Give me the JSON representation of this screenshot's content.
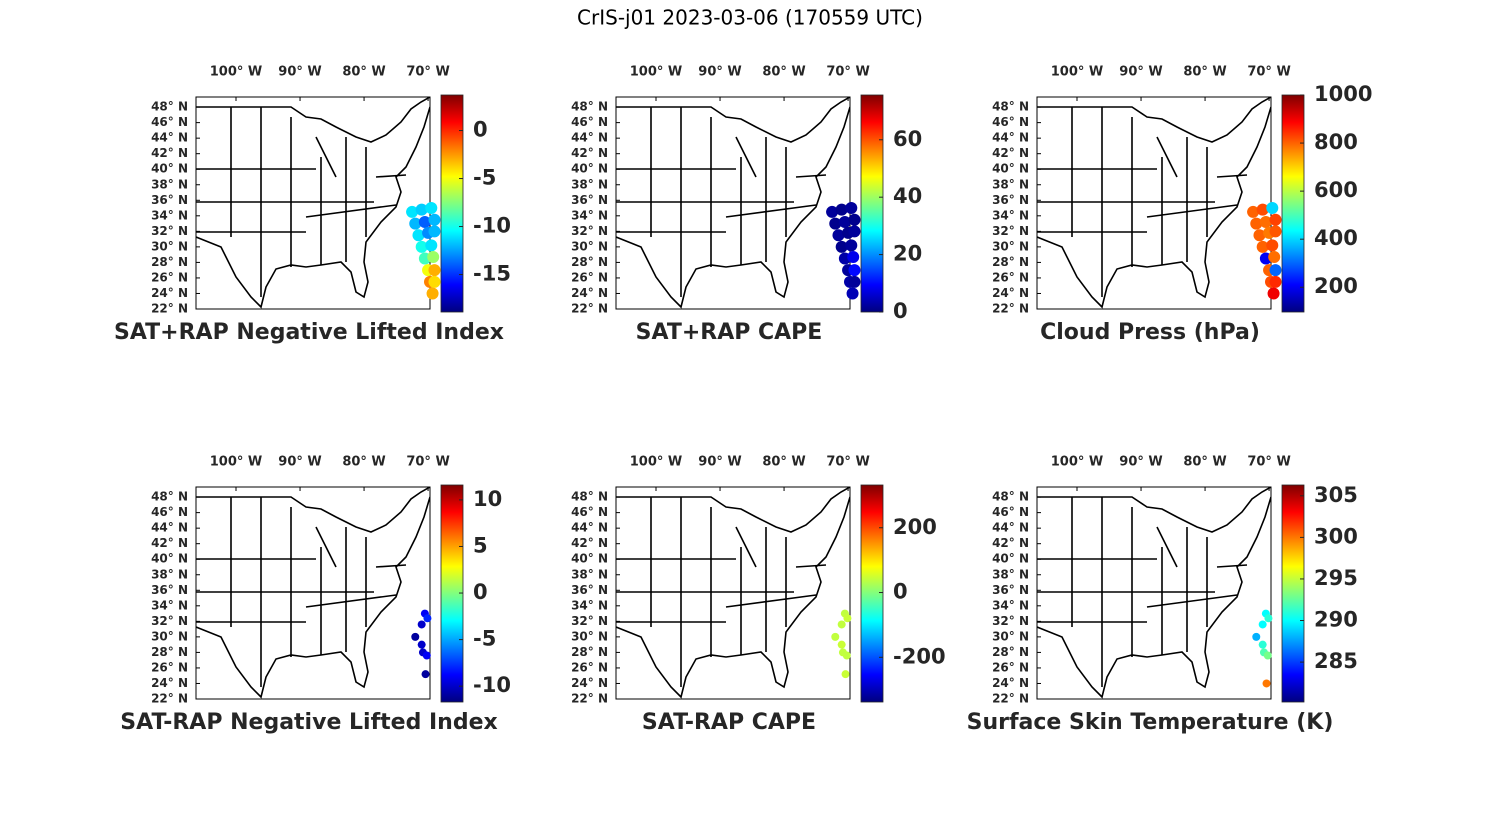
{
  "title": "CrIS-j01 2023-03-06 (170559 UTC)",
  "map": {
    "lon_range": [
      -106.25,
      -69.7
    ],
    "lat_range": [
      22,
      49.3
    ],
    "lon_ticks": [
      {
        "value": -100,
        "label": "100° W"
      },
      {
        "value": -90,
        "label": "90° W"
      },
      {
        "value": -80,
        "label": "80° W"
      },
      {
        "value": -70,
        "label": "70° W"
      }
    ],
    "lat_ticks": [
      {
        "value": 48,
        "label": "48° N"
      },
      {
        "value": 46,
        "label": "46° N"
      },
      {
        "value": 44,
        "label": "44° N"
      },
      {
        "value": 42,
        "label": "42° N"
      },
      {
        "value": 40,
        "label": "40° N"
      },
      {
        "value": 38,
        "label": "38° N"
      },
      {
        "value": 36,
        "label": "36° N"
      },
      {
        "value": 34,
        "label": "34° N"
      },
      {
        "value": 32,
        "label": "32° N"
      },
      {
        "value": 30,
        "label": "30° N"
      },
      {
        "value": 28,
        "label": "28° N"
      },
      {
        "value": 26,
        "label": "26° N"
      },
      {
        "value": 24,
        "label": "24° N"
      },
      {
        "value": 22,
        "label": "22° N"
      }
    ]
  },
  "panels": [
    {
      "title": "SAT+RAP Negative Lifted Index",
      "clim": [
        -18.9,
        3.7
      ],
      "cticks": [
        0,
        -5,
        -10,
        -15
      ],
      "points": [
        {
          "lon": -72.5,
          "lat": 34.5,
          "value": -11
        },
        {
          "lon": -71,
          "lat": 34.8,
          "value": -11.5
        },
        {
          "lon": -69.5,
          "lat": 35,
          "value": -11
        },
        {
          "lon": -72,
          "lat": 33,
          "value": -12
        },
        {
          "lon": -70.5,
          "lat": 33.2,
          "value": -14
        },
        {
          "lon": -69,
          "lat": 33.5,
          "value": -12
        },
        {
          "lon": -71.5,
          "lat": 31.5,
          "value": -11
        },
        {
          "lon": -70,
          "lat": 31.8,
          "value": -13
        },
        {
          "lon": -69,
          "lat": 32,
          "value": -12
        },
        {
          "lon": -71,
          "lat": 30,
          "value": -10
        },
        {
          "lon": -69.5,
          "lat": 30.2,
          "value": -11
        },
        {
          "lon": -70.5,
          "lat": 28.5,
          "value": -9
        },
        {
          "lon": -69.2,
          "lat": 28.7,
          "value": -7
        },
        {
          "lon": -70,
          "lat": 27,
          "value": -5
        },
        {
          "lon": -69,
          "lat": 27,
          "value": -3
        },
        {
          "lon": -69.7,
          "lat": 25.5,
          "value": -2
        },
        {
          "lon": -69,
          "lat": 25.5,
          "value": -4
        },
        {
          "lon": -69.3,
          "lat": 24,
          "value": -3
        }
      ]
    },
    {
      "title": "SAT+RAP CAPE",
      "clim": [
        0,
        75.6
      ],
      "cticks": [
        0,
        20,
        40,
        60
      ],
      "points": [
        {
          "lon": -72.5,
          "lat": 34.5,
          "value": 2
        },
        {
          "lon": -71,
          "lat": 34.8,
          "value": 1
        },
        {
          "lon": -69.5,
          "lat": 35,
          "value": 2
        },
        {
          "lon": -72,
          "lat": 33,
          "value": 1
        },
        {
          "lon": -70.5,
          "lat": 33.2,
          "value": 2
        },
        {
          "lon": -69,
          "lat": 33.5,
          "value": 1
        },
        {
          "lon": -71.5,
          "lat": 31.5,
          "value": 2
        },
        {
          "lon": -70,
          "lat": 31.8,
          "value": 1
        },
        {
          "lon": -69,
          "lat": 32,
          "value": 2
        },
        {
          "lon": -71,
          "lat": 30,
          "value": 1
        },
        {
          "lon": -69.5,
          "lat": 30.2,
          "value": 2
        },
        {
          "lon": -70.5,
          "lat": 28.5,
          "value": 3
        },
        {
          "lon": -69.2,
          "lat": 28.7,
          "value": 8
        },
        {
          "lon": -70,
          "lat": 27,
          "value": 2
        },
        {
          "lon": -69,
          "lat": 27,
          "value": 10
        },
        {
          "lon": -69.7,
          "lat": 25.5,
          "value": 3
        },
        {
          "lon": -69,
          "lat": 25.5,
          "value": 2
        },
        {
          "lon": -69.3,
          "lat": 24,
          "value": 4
        }
      ]
    },
    {
      "title": "Cloud Press (hPa)",
      "clim": [
        97,
        1000
      ],
      "cticks": [
        1000,
        800,
        600,
        400,
        200
      ],
      "points": [
        {
          "lon": -72.5,
          "lat": 34.5,
          "value": 800
        },
        {
          "lon": -71,
          "lat": 34.8,
          "value": 820
        },
        {
          "lon": -69.5,
          "lat": 35,
          "value": 400
        },
        {
          "lon": -72,
          "lat": 33,
          "value": 800
        },
        {
          "lon": -70.5,
          "lat": 33.2,
          "value": 790
        },
        {
          "lon": -69,
          "lat": 33.5,
          "value": 830
        },
        {
          "lon": -71.5,
          "lat": 31.5,
          "value": 800
        },
        {
          "lon": -70,
          "lat": 31.8,
          "value": 780
        },
        {
          "lon": -69,
          "lat": 32,
          "value": 810
        },
        {
          "lon": -71,
          "lat": 30,
          "value": 800
        },
        {
          "lon": -69.5,
          "lat": 30.2,
          "value": 820
        },
        {
          "lon": -70.5,
          "lat": 28.5,
          "value": 200
        },
        {
          "lon": -69.2,
          "lat": 28.7,
          "value": 790
        },
        {
          "lon": -70,
          "lat": 27,
          "value": 800
        },
        {
          "lon": -69,
          "lat": 27,
          "value": 300
        },
        {
          "lon": -69.7,
          "lat": 25.5,
          "value": 820
        },
        {
          "lon": -69,
          "lat": 25.5,
          "value": 850
        },
        {
          "lon": -69.3,
          "lat": 24,
          "value": 900
        }
      ]
    },
    {
      "title": "SAT-RAP Negative Lifted Index",
      "clim": [
        -11.7,
        11.6
      ],
      "cticks": [
        10,
        5,
        0,
        -5,
        -10
      ],
      "points": [
        {
          "lon": -70.5,
          "lat": 33,
          "value": -9
        },
        {
          "lon": -70.1,
          "lat": 32.4,
          "value": -8
        },
        {
          "lon": -71,
          "lat": 31.6,
          "value": -10
        },
        {
          "lon": -72,
          "lat": 30,
          "value": -11
        },
        {
          "lon": -71,
          "lat": 29,
          "value": -10
        },
        {
          "lon": -70.8,
          "lat": 28,
          "value": -10
        },
        {
          "lon": -70.2,
          "lat": 27.6,
          "value": -9
        },
        {
          "lon": -70.4,
          "lat": 25.2,
          "value": -11
        }
      ]
    },
    {
      "title": "SAT-RAP CAPE",
      "clim": [
        -338,
        332
      ],
      "cticks": [
        200,
        0,
        -200
      ],
      "points": [
        {
          "lon": -70.5,
          "lat": 33,
          "value": 40
        },
        {
          "lon": -70.1,
          "lat": 32.4,
          "value": 45
        },
        {
          "lon": -71,
          "lat": 31.6,
          "value": 40
        },
        {
          "lon": -72,
          "lat": 30,
          "value": 40
        },
        {
          "lon": -71,
          "lat": 29,
          "value": 45
        },
        {
          "lon": -70.8,
          "lat": 28,
          "value": 40
        },
        {
          "lon": -70.2,
          "lat": 27.6,
          "value": 40
        },
        {
          "lon": -70.4,
          "lat": 25.2,
          "value": 45
        }
      ]
    },
    {
      "title": "Surface Skin Temperature (K)",
      "clim": [
        280.2,
        306.3
      ],
      "cticks": [
        305,
        300,
        295,
        290,
        285
      ],
      "points": [
        {
          "lon": -70.5,
          "lat": 33,
          "value": 290
        },
        {
          "lon": -70.1,
          "lat": 32.4,
          "value": 291
        },
        {
          "lon": -71,
          "lat": 31.6,
          "value": 290
        },
        {
          "lon": -72,
          "lat": 30,
          "value": 288
        },
        {
          "lon": -71,
          "lat": 29,
          "value": 291
        },
        {
          "lon": -70.8,
          "lat": 28,
          "value": 292
        },
        {
          "lon": -70.2,
          "lat": 27.6,
          "value": 293
        },
        {
          "lon": -70.4,
          "lat": 24,
          "value": 300
        }
      ]
    }
  ]
}
